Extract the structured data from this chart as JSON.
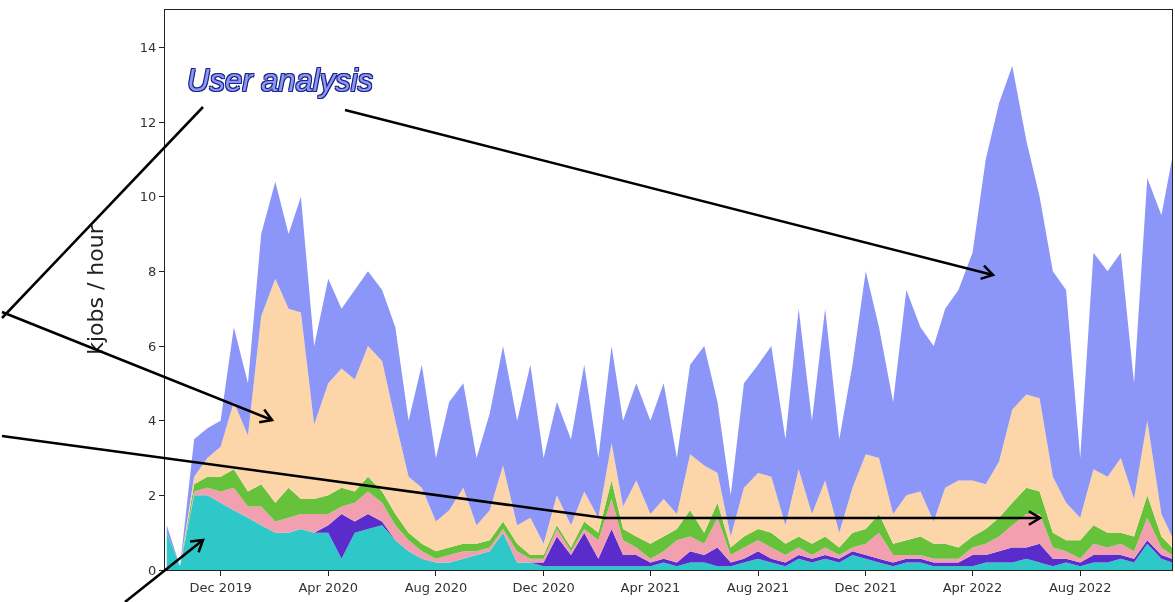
{
  "chart_data": {
    "type": "area",
    "stacked": true,
    "ylabel": "kjobs / hour",
    "annotations": [
      "User analysis"
    ],
    "x": [
      "2019-10-01",
      "2019-10-16",
      "2019-11-01",
      "2019-11-16",
      "2019-12-01",
      "2019-12-16",
      "2020-01-01",
      "2020-01-16",
      "2020-02-01",
      "2020-02-16",
      "2020-03-01",
      "2020-03-16",
      "2020-04-01",
      "2020-04-16",
      "2020-05-01",
      "2020-05-16",
      "2020-06-01",
      "2020-06-16",
      "2020-07-01",
      "2020-07-16",
      "2020-08-01",
      "2020-08-16",
      "2020-09-01",
      "2020-09-16",
      "2020-10-01",
      "2020-10-16",
      "2020-11-01",
      "2020-11-16",
      "2020-12-01",
      "2020-12-16",
      "2021-01-01",
      "2021-01-16",
      "2021-02-01",
      "2021-02-16",
      "2021-03-01",
      "2021-03-16",
      "2021-04-01",
      "2021-04-16",
      "2021-05-01",
      "2021-05-16",
      "2021-06-01",
      "2021-06-16",
      "2021-07-01",
      "2021-07-16",
      "2021-08-01",
      "2021-08-16",
      "2021-09-01",
      "2021-09-16",
      "2021-10-01",
      "2021-10-16",
      "2021-11-01",
      "2021-11-16",
      "2021-12-01",
      "2021-12-16",
      "2022-01-01",
      "2022-01-16",
      "2022-02-01",
      "2022-02-16",
      "2022-03-01",
      "2022-03-16",
      "2022-04-01",
      "2022-04-16",
      "2022-05-01",
      "2022-05-16",
      "2022-06-01",
      "2022-06-16",
      "2022-07-01",
      "2022-07-16",
      "2022-08-01",
      "2022-08-16",
      "2022-09-01",
      "2022-09-16",
      "2022-10-01",
      "2022-10-16",
      "2022-11-01",
      "2022-11-13"
    ],
    "series": [
      {
        "color": "#2ec8c8",
        "values": [
          1.0,
          0.1,
          2.0,
          2.0,
          1.8,
          1.6,
          1.4,
          1.2,
          1.0,
          1.0,
          1.1,
          1.0,
          1.0,
          0.3,
          1.0,
          1.1,
          1.2,
          0.8,
          0.5,
          0.3,
          0.2,
          0.2,
          0.3,
          0.4,
          0.5,
          1.0,
          0.2,
          0.2,
          0.1,
          0.1,
          0.1,
          0.1,
          0.1,
          0.1,
          0.1,
          0.1,
          0.1,
          0.2,
          0.1,
          0.2,
          0.2,
          0.1,
          0.1,
          0.2,
          0.3,
          0.2,
          0.1,
          0.3,
          0.2,
          0.3,
          0.2,
          0.4,
          0.3,
          0.2,
          0.1,
          0.2,
          0.2,
          0.1,
          0.1,
          0.1,
          0.1,
          0.2,
          0.2,
          0.2,
          0.3,
          0.2,
          0.1,
          0.2,
          0.1,
          0.2,
          0.2,
          0.3,
          0.2,
          0.7,
          0.3,
          0.2
        ]
      },
      {
        "color": "#5a2ccc",
        "values": [
          0,
          0,
          0,
          0,
          0,
          0,
          0,
          0,
          0,
          0,
          0,
          0,
          0.2,
          1.2,
          0.3,
          0.4,
          0.1,
          0,
          0,
          0,
          0,
          0,
          0,
          0,
          0,
          0,
          0,
          0,
          0.1,
          0.8,
          0.3,
          0.9,
          0.2,
          1.0,
          0.3,
          0.3,
          0.1,
          0.1,
          0.1,
          0.3,
          0.2,
          0.5,
          0.1,
          0.1,
          0.2,
          0.1,
          0.1,
          0.1,
          0.1,
          0.1,
          0.1,
          0.1,
          0.1,
          0.1,
          0.1,
          0.1,
          0.1,
          0.1,
          0.1,
          0.1,
          0.3,
          0.2,
          0.3,
          0.4,
          0.3,
          0.5,
          0.2,
          0.1,
          0.1,
          0.2,
          0.2,
          0.1,
          0.1,
          0.1,
          0.1,
          0.1
        ]
      },
      {
        "color": "#f2a0b0",
        "values": [
          0,
          0,
          0.1,
          0.2,
          0.3,
          0.6,
          0.3,
          0.5,
          0.3,
          0.4,
          0.4,
          0.5,
          0.3,
          0.2,
          0.5,
          0.6,
          0.5,
          0.4,
          0.3,
          0.2,
          0.1,
          0.2,
          0.2,
          0.1,
          0.1,
          0.1,
          0.3,
          0.1,
          0.1,
          0.2,
          0.1,
          0.1,
          0.5,
          0.8,
          0.4,
          0.2,
          0.1,
          0.2,
          0.6,
          0.4,
          0.3,
          0.8,
          0.2,
          0.3,
          0.3,
          0.3,
          0.2,
          0.2,
          0.1,
          0.2,
          0.1,
          0.1,
          0.3,
          0.7,
          0.2,
          0.1,
          0.1,
          0.1,
          0.1,
          0.1,
          0.2,
          0.3,
          0.4,
          0.6,
          0.9,
          0.8,
          0.3,
          0.2,
          0.1,
          0.3,
          0.2,
          0.3,
          0.2,
          0.6,
          0.2,
          0.1
        ]
      },
      {
        "color": "#66c23a",
        "values": [
          0,
          0,
          0.2,
          0.3,
          0.4,
          0.5,
          0.4,
          0.6,
          0.5,
          0.8,
          0.4,
          0.4,
          0.5,
          0.5,
          0.3,
          0.4,
          0.3,
          0.3,
          0.2,
          0.2,
          0.2,
          0.2,
          0.2,
          0.2,
          0.2,
          0.2,
          0.2,
          0.1,
          0.1,
          0.1,
          0.1,
          0.2,
          0.2,
          0.5,
          0.3,
          0.3,
          0.4,
          0.4,
          0.3,
          0.7,
          0.3,
          0.4,
          0.2,
          0.3,
          0.3,
          0.4,
          0.3,
          0.3,
          0.3,
          0.3,
          0.2,
          0.4,
          0.4,
          0.5,
          0.3,
          0.4,
          0.5,
          0.4,
          0.4,
          0.3,
          0.3,
          0.4,
          0.5,
          0.6,
          0.7,
          0.6,
          0.4,
          0.3,
          0.5,
          0.5,
          0.4,
          0.3,
          0.4,
          0.6,
          0.3,
          0.2
        ]
      },
      {
        "color": "#fcd5a8",
        "values": [
          0,
          0,
          0.2,
          0.5,
          0.8,
          1.8,
          1.5,
          4.5,
          6.0,
          4.8,
          5.0,
          2.0,
          3.0,
          3.2,
          3.0,
          3.5,
          3.5,
          2.5,
          1.5,
          1.5,
          0.8,
          1.0,
          1.5,
          0.5,
          0.8,
          1.5,
          0.5,
          1.0,
          0.3,
          0.8,
          0.6,
          0.8,
          0.4,
          1.0,
          0.6,
          1.5,
          0.8,
          1.0,
          0.4,
          1.5,
          1.8,
          0.8,
          0.3,
          1.3,
          1.5,
          1.5,
          0.5,
          1.8,
          0.8,
          1.5,
          0.4,
          1.2,
          2.0,
          1.5,
          0.8,
          1.2,
          1.2,
          0.6,
          1.5,
          1.8,
          1.5,
          1.2,
          1.5,
          2.5,
          2.5,
          2.5,
          1.5,
          1.0,
          0.6,
          1.5,
          1.5,
          2.0,
          1.0,
          2.0,
          0.6,
          0.3
        ]
      },
      {
        "color": "#8c96f8",
        "values": [
          0.2,
          0,
          1.0,
          0.8,
          0.7,
          2.0,
          1.4,
          2.2,
          2.6,
          2.0,
          3.1,
          2.1,
          2.8,
          1.6,
          2.4,
          2.0,
          1.9,
          2.5,
          1.5,
          3.3,
          1.7,
          2.9,
          2.8,
          1.8,
          2.6,
          3.2,
          2.8,
          4.1,
          2.3,
          2.5,
          2.3,
          3.4,
          1.6,
          2.6,
          2.3,
          2.6,
          2.5,
          3.1,
          1.5,
          2.4,
          3.2,
          1.9,
          1.1,
          2.8,
          2.9,
          3.5,
          2.3,
          4.3,
          2.5,
          4.6,
          2.5,
          3.3,
          4.9,
          3.5,
          3.0,
          5.5,
          4.4,
          4.7,
          4.8,
          5.1,
          6.1,
          8.7,
          9.6,
          9.2,
          6.8,
          5.4,
          5.5,
          5.7,
          1.6,
          5.8,
          5.5,
          5.5,
          3.1,
          6.5,
          8.0,
          10.1
        ]
      }
    ],
    "xlim": [
      "2019-09-29",
      "2022-11-13"
    ],
    "xticks": [
      {
        "value": "2019-12-01",
        "label": "Dec 2019"
      },
      {
        "value": "2020-04-01",
        "label": "Apr 2020"
      },
      {
        "value": "2020-08-01",
        "label": "Aug 2020"
      },
      {
        "value": "2020-12-01",
        "label": "Dec 2020"
      },
      {
        "value": "2021-04-01",
        "label": "Apr 2021"
      },
      {
        "value": "2021-08-01",
        "label": "Aug 2021"
      },
      {
        "value": "2021-12-01",
        "label": "Dec 2021"
      },
      {
        "value": "2022-04-01",
        "label": "Apr 2022"
      },
      {
        "value": "2022-08-01",
        "label": "Aug 2022"
      }
    ],
    "ylim": [
      0,
      15
    ],
    "yticks": [
      0,
      2,
      4,
      6,
      8,
      10,
      12,
      14
    ],
    "grid": false
  }
}
